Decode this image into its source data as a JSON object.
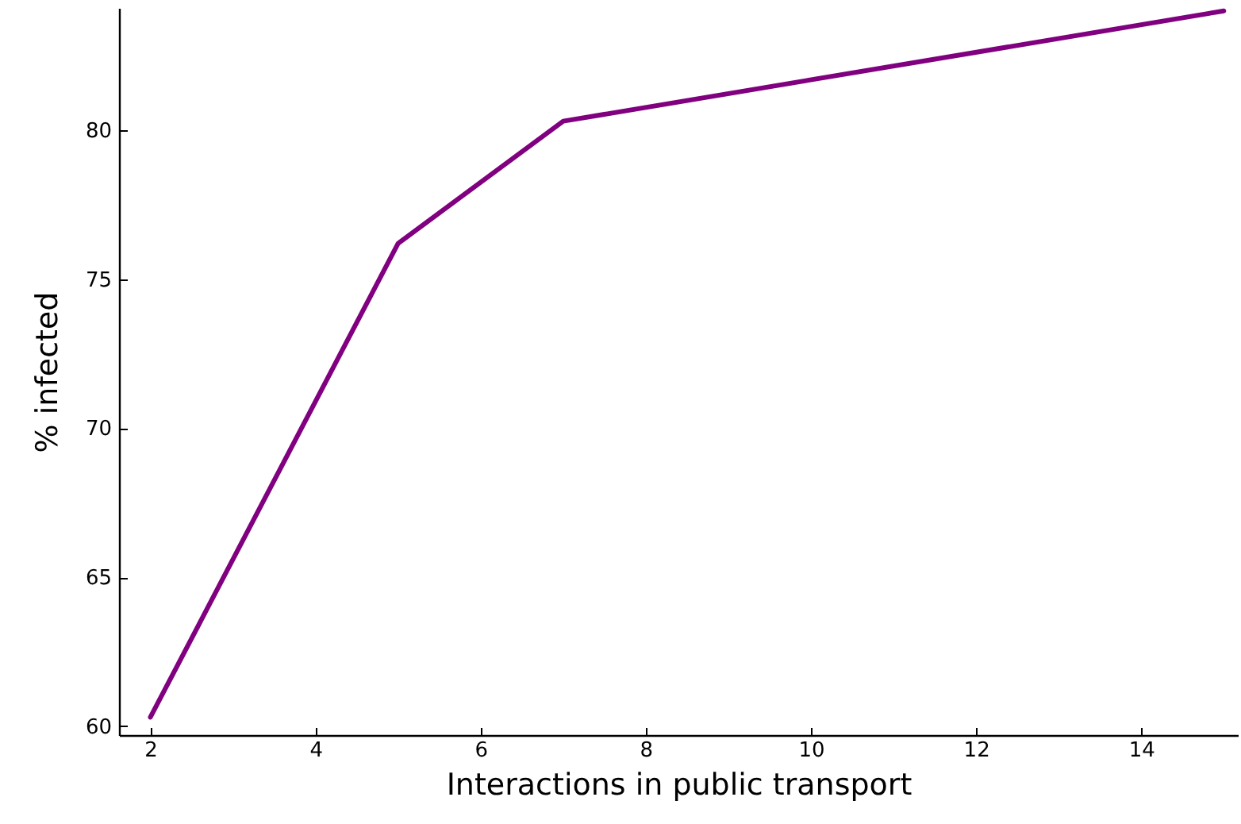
{
  "chart_data": {
    "type": "line",
    "xlabel": "Interactions in public transport",
    "ylabel": "% infected",
    "x": [
      2,
      5,
      7,
      15
    ],
    "series": [
      {
        "color": "#800080",
        "values": [
          60.3,
          76.2,
          80.3,
          84.0
        ]
      }
    ],
    "xlim": [
      1.62,
      15.17
    ],
    "xticks": [
      2,
      4,
      6,
      8,
      10,
      12,
      14
    ],
    "ylim": [
      59.7,
      84.1
    ],
    "yticks": [
      60,
      65,
      70,
      75,
      80
    ],
    "grid": false,
    "marker": "none",
    "line_style": "solid"
  }
}
